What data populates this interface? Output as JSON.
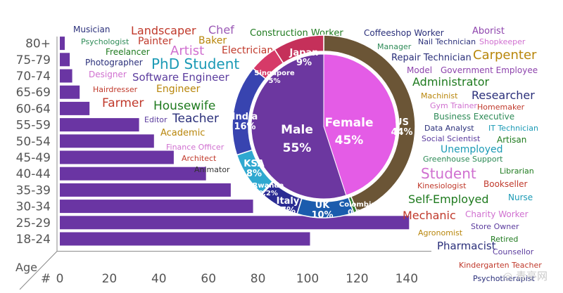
{
  "chart_data": [
    {
      "type": "bar",
      "orientation": "horizontal",
      "y_title": "Age",
      "x_title": "#",
      "categories": [
        "80+",
        "75-79",
        "70-74",
        "65-69",
        "60-64",
        "55-59",
        "50-54",
        "45-49",
        "40-44",
        "35-39",
        "30-34",
        "25-29",
        "18-24"
      ],
      "values": [
        2,
        4,
        5,
        8,
        12,
        32,
        38,
        46,
        59,
        69,
        78,
        141,
        101
      ],
      "xlim": [
        0,
        150
      ],
      "xticks": [
        0,
        20,
        40,
        60,
        80,
        100,
        120,
        140
      ],
      "bar_color": "#6a35a3",
      "grid": false
    },
    {
      "type": "pie",
      "subtype": "donut-inner",
      "slices": [
        {
          "label": "Male",
          "pct": "55%",
          "value": 55,
          "color": "#6c37a0"
        },
        {
          "label": "Female",
          "pct": "45%",
          "value": 45,
          "color": "#e45ce6"
        }
      ]
    },
    {
      "type": "pie",
      "subtype": "donut-outer",
      "slices": [
        {
          "label": "US",
          "pct": "44%",
          "value": 44,
          "color": "#6b5536"
        },
        {
          "label": "Colombia",
          "pct": "0.6%",
          "value": 0.6,
          "color": "#2f7e2f"
        },
        {
          "label": "UK",
          "pct": "10%",
          "value": 10,
          "color": "#1b5cad"
        },
        {
          "label": "Italy",
          "pct": "7%",
          "value": 7,
          "color": "#2b2c93"
        },
        {
          "label": "Rwanda",
          "pct": "0.2%",
          "value": 0.2,
          "color": "#1b9ab5"
        },
        {
          "label": "KSA",
          "pct": "8%",
          "value": 8,
          "color": "#2fa8d0"
        },
        {
          "label": "India",
          "pct": "16%",
          "value": 16,
          "color": "#3844b0"
        },
        {
          "label": "Singapore",
          "pct": "5%",
          "value": 5,
          "color": "#d63a68"
        },
        {
          "label": "Japan",
          "pct": "9%",
          "value": 9,
          "color": "#c5305a"
        }
      ]
    },
    {
      "type": "wordcloud",
      "words": [
        {
          "text": "Musician",
          "color": "#2a2f7a"
        },
        {
          "text": "Landscaper",
          "color": "#c0392b"
        },
        {
          "text": "Chef",
          "color": "#9b59b6"
        },
        {
          "text": "Construction Worker",
          "color": "#1e7a1e"
        },
        {
          "text": "Coffeeshop Worker",
          "color": "#2a2f7a"
        },
        {
          "text": "Aborist",
          "color": "#8e44ad"
        },
        {
          "text": "Psychologist",
          "color": "#2e8b57"
        },
        {
          "text": "Painter",
          "color": "#c0392b"
        },
        {
          "text": "Baker",
          "color": "#b8860b"
        },
        {
          "text": "Manager",
          "color": "#2e8b57"
        },
        {
          "text": "Nail Technician",
          "color": "#2a2f7a"
        },
        {
          "text": "Shopkeeper",
          "color": "#d070d0"
        },
        {
          "text": "Freelancer",
          "color": "#1e7a1e"
        },
        {
          "text": "Artist",
          "color": "#d070d0"
        },
        {
          "text": "Electrician",
          "color": "#c0392b"
        },
        {
          "text": "Carpenter",
          "color": "#b8860b"
        },
        {
          "text": "Photographer",
          "color": "#2a2f7a"
        },
        {
          "text": "PhD Student",
          "color": "#1b9ab5"
        },
        {
          "text": "Repair Technician",
          "color": "#2a2f7a"
        },
        {
          "text": "Designer",
          "color": "#d070d0"
        },
        {
          "text": "Software Engineer",
          "color": "#5b3c9e"
        },
        {
          "text": "Model",
          "color": "#8e44ad"
        },
        {
          "text": "Government Employee",
          "color": "#8e44ad"
        },
        {
          "text": "Hairdresser",
          "color": "#c0392b"
        },
        {
          "text": "Engineer",
          "color": "#b8860b"
        },
        {
          "text": "Administrator",
          "color": "#1e7a1e"
        },
        {
          "text": "Machinist",
          "color": "#b8860b"
        },
        {
          "text": "Researcher",
          "color": "#2a2f7a"
        },
        {
          "text": "Farmer",
          "color": "#c0392b"
        },
        {
          "text": "Housewife",
          "color": "#1e7a1e"
        },
        {
          "text": "Gym Trainer",
          "color": "#d070d0"
        },
        {
          "text": "Homemaker",
          "color": "#c0392b"
        },
        {
          "text": "Editor",
          "color": "#5b3c9e"
        },
        {
          "text": "Teacher",
          "color": "#2a2f7a"
        },
        {
          "text": "Business Executive",
          "color": "#2e8b57"
        },
        {
          "text": "Data Analyst",
          "color": "#2a2f7a"
        },
        {
          "text": "IT Technician",
          "color": "#1b9ab5"
        },
        {
          "text": "Academic",
          "color": "#b8860b"
        },
        {
          "text": "Social Scientist",
          "color": "#5b3c9e"
        },
        {
          "text": "Artisan",
          "color": "#1e7a1e"
        },
        {
          "text": "Finance Officer",
          "color": "#d070d0"
        },
        {
          "text": "Unemployed",
          "color": "#1b9ab5"
        },
        {
          "text": "Architect",
          "color": "#c0392b"
        },
        {
          "text": "Greenhouse Support",
          "color": "#2e8b57"
        },
        {
          "text": "Animator",
          "color": "#333333"
        },
        {
          "text": "Student",
          "color": "#d070d0"
        },
        {
          "text": "Librarian",
          "color": "#1e7a1e"
        },
        {
          "text": "Kinesiologist",
          "color": "#c0392b"
        },
        {
          "text": "Bookseller",
          "color": "#c0392b"
        },
        {
          "text": "Self-Employed",
          "color": "#1e7a1e"
        },
        {
          "text": "Nurse",
          "color": "#1b9ab5"
        },
        {
          "text": "Mechanic",
          "color": "#c0392b"
        },
        {
          "text": "Charity Worker",
          "color": "#d070d0"
        },
        {
          "text": "Agronomist",
          "color": "#b8860b"
        },
        {
          "text": "Store Owner",
          "color": "#5b3c9e"
        },
        {
          "text": "Pharmacist",
          "color": "#2a2f7a"
        },
        {
          "text": "Retired",
          "color": "#1e7a1e"
        },
        {
          "text": "Counsellor",
          "color": "#5b3c9e"
        },
        {
          "text": "Kindergarten Teacher",
          "color": "#c0392b"
        },
        {
          "text": "Psychotherapist",
          "color": "#2a2f7a"
        }
      ]
    }
  ],
  "watermark": "◎ 青亭网"
}
